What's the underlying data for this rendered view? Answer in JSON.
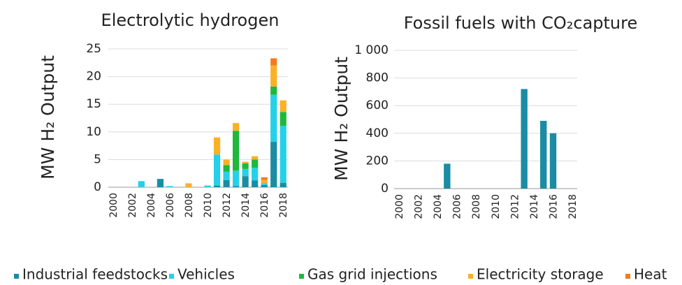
{
  "chart_data": [
    {
      "type": "bar",
      "stacked": true,
      "title": "Electrolytic hydrogen",
      "y_label": "MW H₂  Output",
      "categories": [
        "2000",
        null,
        "2002",
        null,
        "2004",
        null,
        "2006",
        null,
        "2008",
        null,
        "2010",
        null,
        "2012",
        null,
        "2014",
        null,
        "2016",
        null,
        "2018"
      ],
      "series": [
        {
          "name": "Industrial feedstocks",
          "color": "#1b8ca3",
          "values": [
            0,
            0,
            0,
            0,
            0,
            1.5,
            0,
            0,
            0,
            0,
            0,
            0.3,
            1.3,
            0.2,
            2.0,
            1.2,
            0.4,
            8.2,
            0.8
          ]
        },
        {
          "name": "Vehicles",
          "color": "#25d0ea",
          "values": [
            0,
            0,
            0,
            1.1,
            0,
            0,
            0.2,
            0,
            0,
            0,
            0.3,
            5.6,
            1.5,
            2.8,
            1.3,
            2.3,
            0.3,
            8.5,
            10.3
          ]
        },
        {
          "name": "Gas grid injections",
          "color": "#1fb83c",
          "values": [
            0,
            0,
            0,
            0,
            0,
            0,
            0,
            0,
            0,
            0,
            0,
            0,
            1.2,
            7.2,
            1.0,
            1.5,
            0,
            1.5,
            2.5
          ]
        },
        {
          "name": "Electricity storage",
          "color": "#fbb125",
          "values": [
            0,
            0,
            0,
            0,
            0,
            0,
            0,
            0,
            0.7,
            0,
            0,
            3.1,
            1.0,
            1.4,
            0.3,
            0.6,
            0.6,
            3.8,
            2.1
          ]
        },
        {
          "name": "Heat",
          "color": "#f47b20",
          "values": [
            0,
            0,
            0,
            0,
            0,
            0,
            0,
            0,
            0,
            0,
            0,
            0,
            0,
            0,
            0,
            0,
            0.5,
            1.3,
            0
          ]
        }
      ],
      "ylim": [
        0,
        25
      ],
      "yticks": [
        0,
        5,
        10,
        15,
        20,
        25
      ],
      "grid": true
    },
    {
      "type": "bar",
      "title": "Fossil fuels with CO₂capture",
      "y_label": "MW H₂  Output",
      "categories": [
        "2000",
        null,
        "2002",
        null,
        "2004",
        null,
        "2006",
        null,
        "2008",
        null,
        "2010",
        null,
        "2012",
        null,
        "2014",
        null,
        "2016",
        null,
        "2018"
      ],
      "series": [
        {
          "color": "#1b8ca3",
          "values": [
            0,
            0,
            0,
            0,
            0,
            180,
            0,
            0,
            0,
            0,
            0,
            0,
            0,
            720,
            0,
            490,
            400,
            0,
            0
          ]
        }
      ],
      "ylim": [
        0,
        1000
      ],
      "yticks": [
        0,
        200,
        400,
        600,
        800,
        {
          "value": 1000,
          "label": "1 000"
        }
      ],
      "grid": true
    }
  ]
}
